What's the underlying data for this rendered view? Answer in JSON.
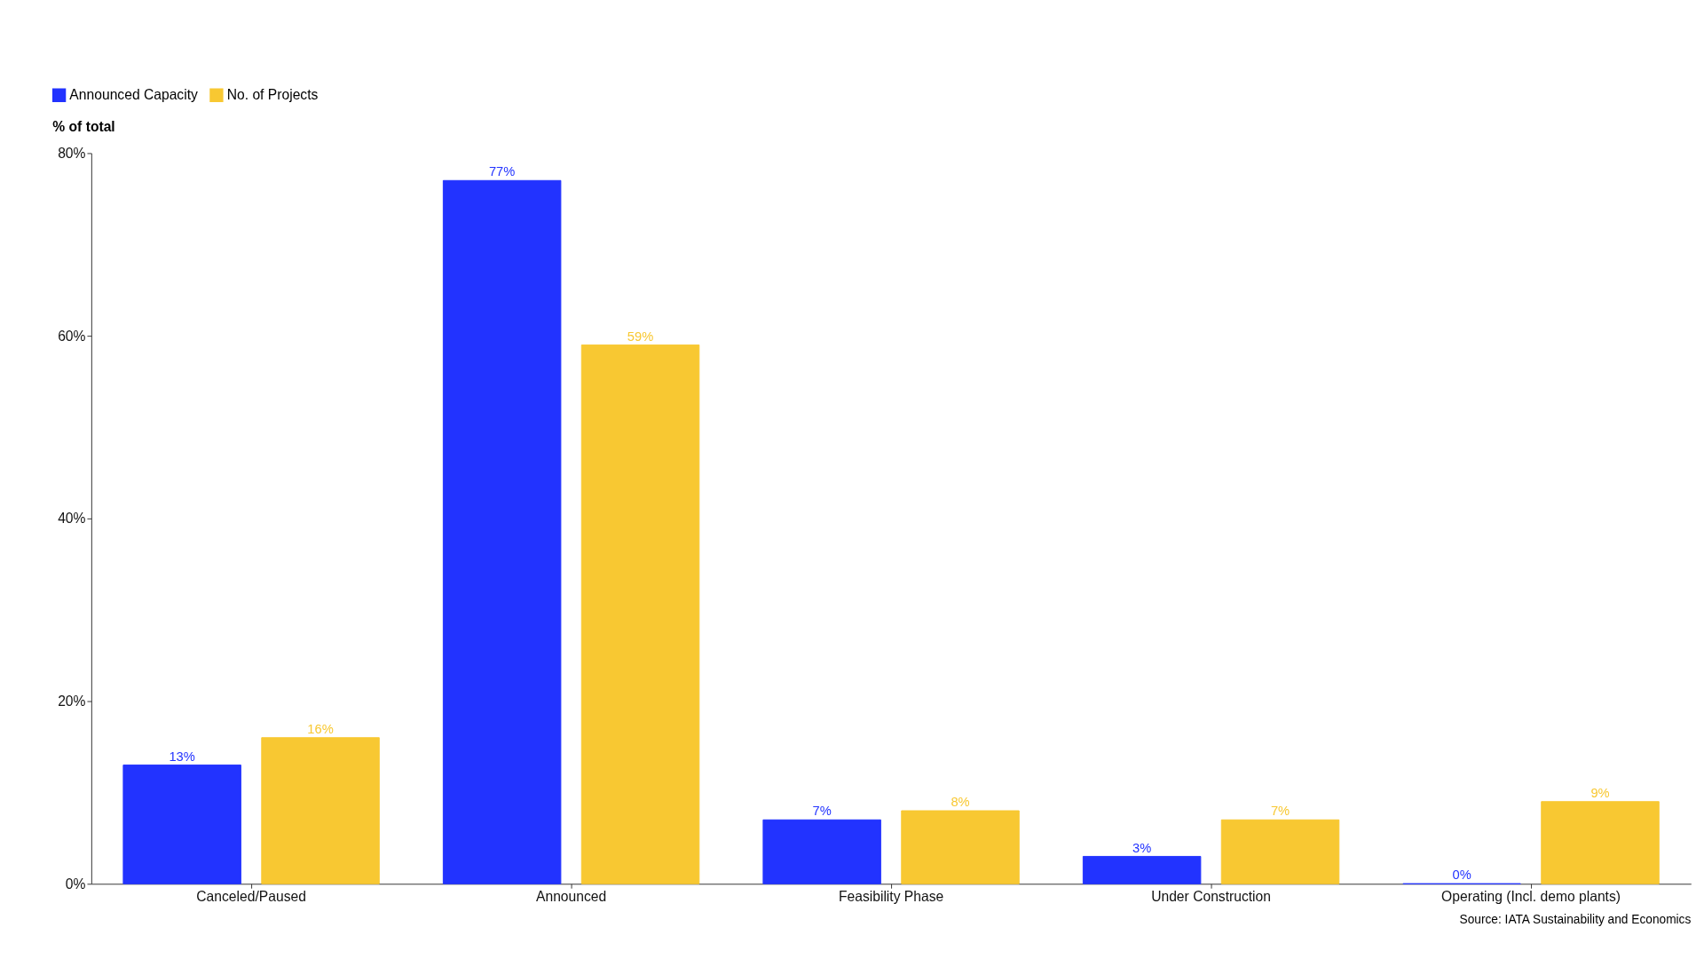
{
  "chart_data": {
    "type": "bar",
    "ylabel": "% of total",
    "categories": [
      "Canceled/Paused",
      "Announced",
      "Feasibility Phase",
      "Under Construction",
      "Operating (Incl. demo plants)"
    ],
    "series": [
      {
        "name": "Announced Capacity",
        "color": "#2233ff",
        "values": [
          13,
          77,
          7,
          3,
          0
        ],
        "value_labels": [
          "13%",
          "77%",
          "7%",
          "3%",
          "0%"
        ]
      },
      {
        "name": "No. of Projects",
        "color": "#f8c832",
        "values": [
          16,
          59,
          8,
          7,
          9
        ],
        "value_labels": [
          "16%",
          "59%",
          "8%",
          "7%",
          "9%"
        ]
      }
    ],
    "ylim": [
      0,
      80
    ],
    "yticks": [
      {
        "value": 0,
        "label": "0%"
      },
      {
        "value": 20,
        "label": "20%"
      },
      {
        "value": 40,
        "label": "40%"
      },
      {
        "value": 60,
        "label": "60%"
      },
      {
        "value": 80,
        "label": "80%"
      }
    ],
    "grid": false,
    "legend": "top left",
    "annotations": [
      "Source: IATA Sustainability and Economics"
    ]
  }
}
